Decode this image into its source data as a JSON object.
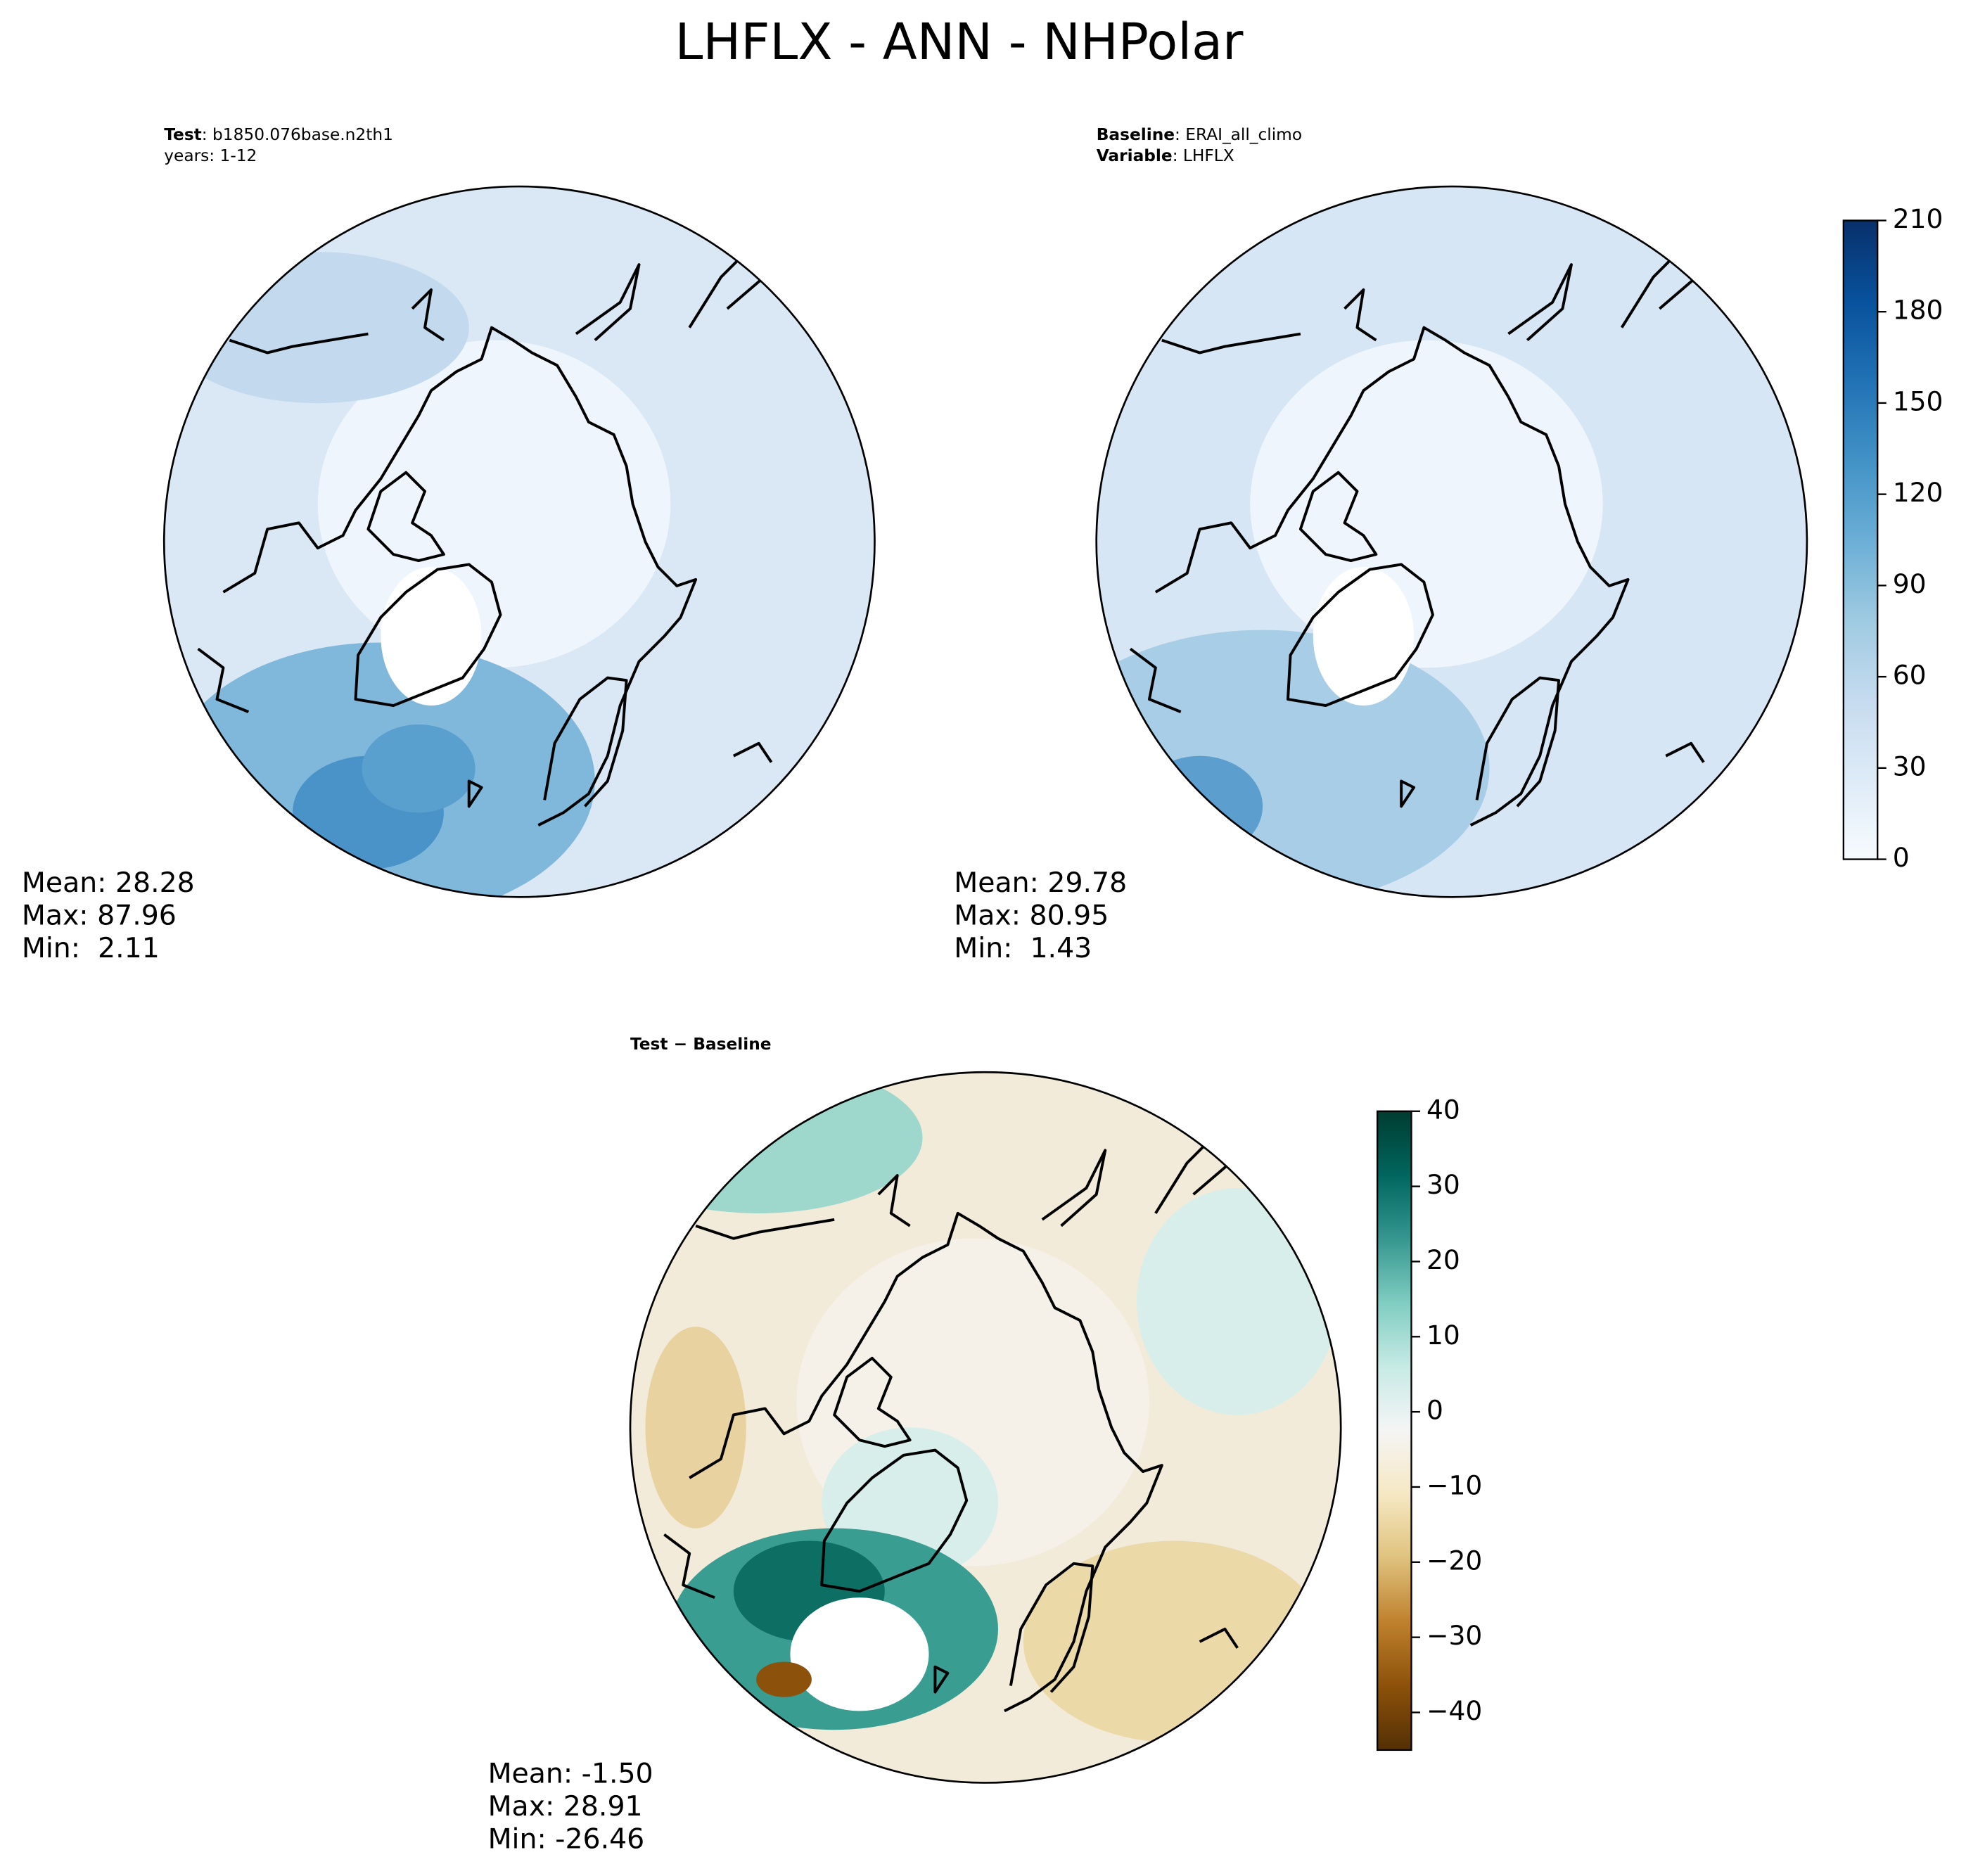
{
  "title": "LHFLX - ANN - NHPolar",
  "panels": [
    {
      "header": [
        {
          "label": "Test",
          "text": ": b1850.076base.n2th1"
        },
        {
          "text": "years: 1-12"
        }
      ],
      "stats": [
        "Mean: 28.28",
        "Max: 87.96",
        "Min:  2.11"
      ]
    },
    {
      "header": [
        {
          "label": "Baseline",
          "text": ": ERAI_all_climo"
        },
        {
          "label": "Variable",
          "text": ": LHFLX"
        }
      ],
      "stats": [
        "Mean: 29.78",
        "Max: 80.95",
        "Min:  1.43"
      ]
    },
    {
      "header": [
        {
          "label": "Test − Baseline"
        }
      ],
      "stats": [
        "Mean: -1.50",
        "Max: 28.91",
        "Min: -26.46"
      ]
    }
  ],
  "colorbars": [
    {
      "lim": [
        0,
        210
      ],
      "ticks": [
        0,
        30,
        60,
        90,
        120,
        150,
        180,
        210
      ],
      "colors": [
        "#f7fbff",
        "#deebf7",
        "#c6dbef",
        "#9ecae1",
        "#6baed6",
        "#4292c6",
        "#2171b5",
        "#08519c",
        "#08306b"
      ]
    },
    {
      "lim": [
        -45,
        40
      ],
      "ticks": [
        {
          "value": -40,
          "label": "−40"
        },
        {
          "value": -30,
          "label": "−30"
        },
        {
          "value": -20,
          "label": "−20"
        },
        {
          "value": -10,
          "label": "−10"
        },
        0,
        10,
        20,
        30,
        40
      ],
      "colors": [
        "#543005",
        "#8c510a",
        "#bf812d",
        "#dfc27d",
        "#f6e8c3",
        "#f5f5f5",
        "#c7eae5",
        "#80cdc1",
        "#35978f",
        "#01665e",
        "#003c30"
      ]
    }
  ]
}
